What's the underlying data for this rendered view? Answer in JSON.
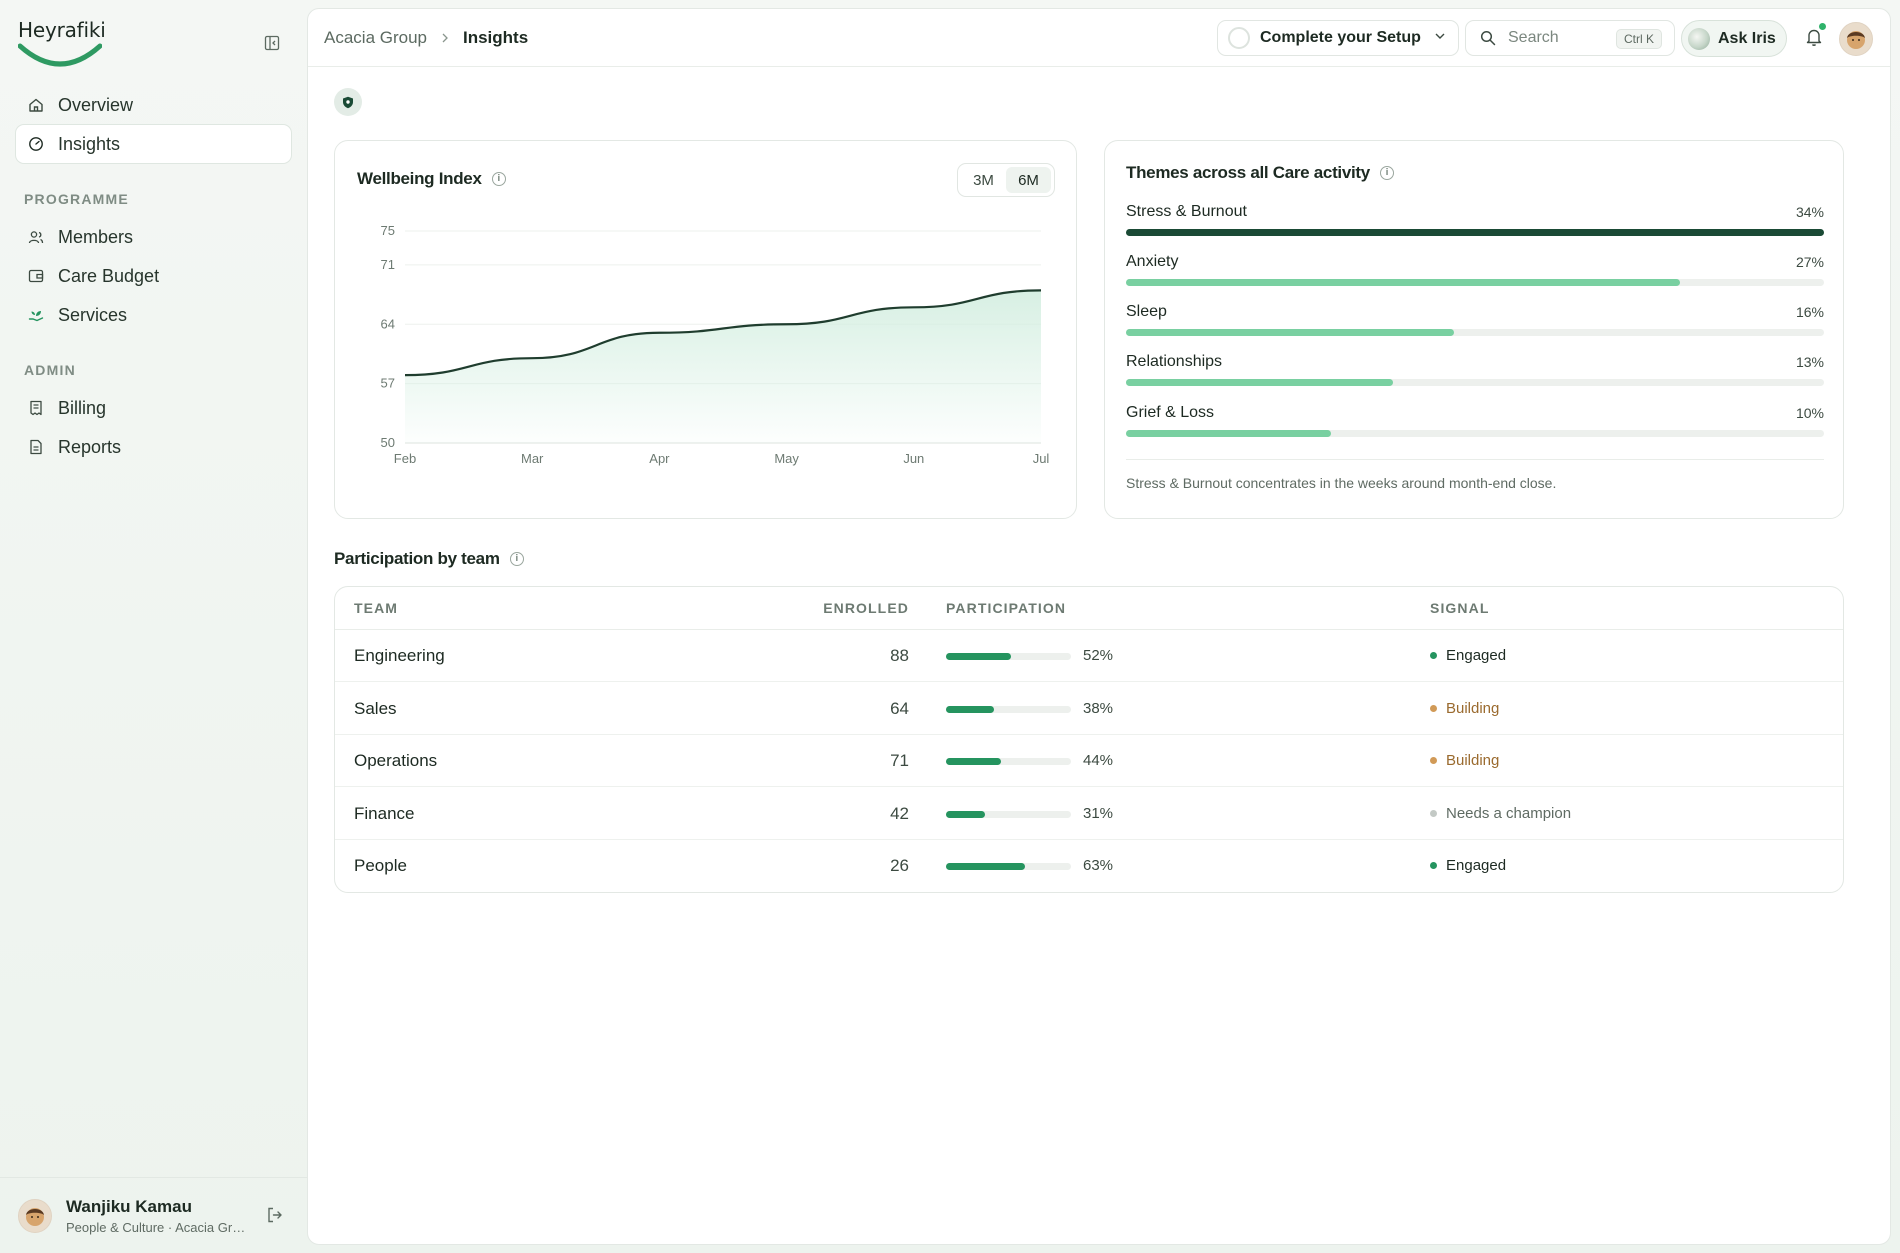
{
  "brand": {
    "name": "Heyrafiki",
    "accent": "#2e9a62"
  },
  "sidebar": {
    "nav_top": [
      {
        "label": "Overview",
        "icon": "home-icon"
      },
      {
        "label": "Insights",
        "icon": "gauge-icon",
        "active": true
      }
    ],
    "programme_label": "PROGRAMME",
    "programme": [
      {
        "label": "Members",
        "icon": "users-icon"
      },
      {
        "label": "Care Budget",
        "icon": "wallet-icon"
      },
      {
        "label": "Services",
        "icon": "hand-plant-icon"
      }
    ],
    "admin_label": "ADMIN",
    "admin": [
      {
        "label": "Billing",
        "icon": "receipt-icon"
      },
      {
        "label": "Reports",
        "icon": "document-icon"
      }
    ],
    "user": {
      "name": "Wanjiku Kamau",
      "role": "People & Culture · Acacia Group"
    }
  },
  "topbar": {
    "breadcrumb": [
      "Acacia Group",
      "Insights"
    ],
    "setup_label": "Complete your Setup",
    "search_placeholder": "Search",
    "search_shortcut": "Ctrl K",
    "ask_label": "Ask Iris"
  },
  "wellbeing": {
    "title": "Wellbeing Index",
    "ranges": [
      "3M",
      "6M"
    ],
    "selected_range": "6M"
  },
  "chart_data": {
    "type": "area",
    "title": "Wellbeing Index",
    "categories": [
      "Feb",
      "Mar",
      "Apr",
      "May",
      "Jun",
      "Jul"
    ],
    "y_ticks": [
      50,
      57,
      64,
      71,
      75
    ],
    "ylim": [
      50,
      75
    ],
    "series": [
      {
        "values": [
          58,
          60,
          63,
          64,
          66,
          68
        ]
      }
    ],
    "grid": true,
    "line_color": "#1f3d2e",
    "fill_color": "#d3eee0"
  },
  "themes": {
    "title": "Themes across all Care activity",
    "items": [
      {
        "label": "Stress & Burnout",
        "value": 34,
        "pct_label": "34%",
        "bar_fraction": 1.0,
        "color": "#1a4a35"
      },
      {
        "label": "Anxiety",
        "value": 27,
        "pct_label": "27%",
        "bar_fraction": 0.794,
        "color": "#79d0a1"
      },
      {
        "label": "Sleep",
        "value": 16,
        "pct_label": "16%",
        "bar_fraction": 0.47,
        "color": "#79d0a1"
      },
      {
        "label": "Relationships",
        "value": 13,
        "pct_label": "13%",
        "bar_fraction": 0.383,
        "color": "#79d0a1"
      },
      {
        "label": "Grief & Loss",
        "value": 10,
        "pct_label": "10%",
        "bar_fraction": 0.294,
        "color": "#79d0a1"
      }
    ],
    "note": "Stress & Burnout concentrates in the weeks around month-end close."
  },
  "participation": {
    "title": "Participation by team",
    "columns": [
      "TEAM",
      "ENROLLED",
      "PARTICIPATION",
      "SIGNAL"
    ],
    "rows": [
      {
        "team": "Engineering",
        "enrolled": "88",
        "participation": 52,
        "participation_label": "52%",
        "signal": "Engaged",
        "signal_color": "#25945f",
        "signal_text_color": "#1d2a22"
      },
      {
        "team": "Sales",
        "enrolled": "64",
        "participation": 38,
        "participation_label": "38%",
        "signal": "Building",
        "signal_color": "#d19a57",
        "signal_text_color": "#9a6a2e"
      },
      {
        "team": "Operations",
        "enrolled": "71",
        "participation": 44,
        "participation_label": "44%",
        "signal": "Building",
        "signal_color": "#d19a57",
        "signal_text_color": "#9a6a2e"
      },
      {
        "team": "Finance",
        "enrolled": "42",
        "participation": 31,
        "participation_label": "31%",
        "signal": "Needs a champion",
        "signal_color": "#c3c9c5",
        "signal_text_color": "#5f6b63"
      },
      {
        "team": "People",
        "enrolled": "26",
        "participation": 63,
        "participation_label": "63%",
        "signal": "Engaged",
        "signal_color": "#25945f",
        "signal_text_color": "#1d2a22"
      }
    ]
  }
}
